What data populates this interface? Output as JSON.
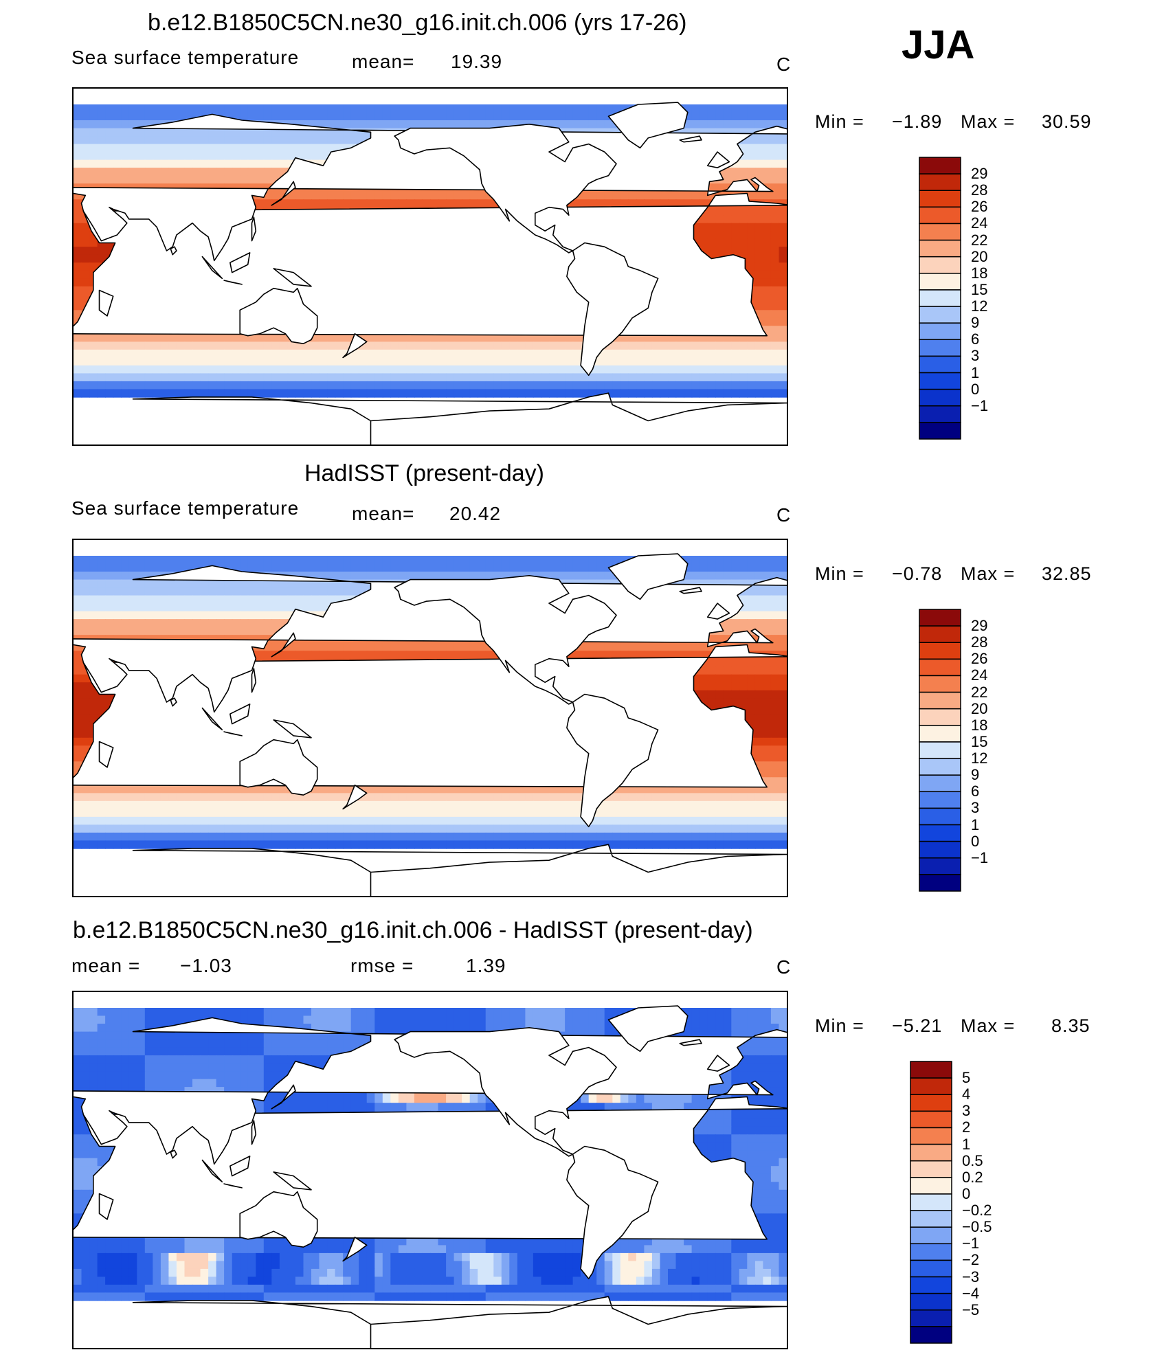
{
  "season": "JJA",
  "colors": {
    "abs": [
      "#000080",
      "#0a1fb0",
      "#0b33cc",
      "#1245dd",
      "#2a5fe6",
      "#4f80ee",
      "#7fa6f4",
      "#a9c6f8",
      "#d4e6fa",
      "#fdf2e2",
      "#fcd3bc",
      "#f9aa84",
      "#f4804f",
      "#ec5a2a",
      "#de3f10",
      "#c1280a",
      "#8b0a0a"
    ],
    "diff": [
      "#000080",
      "#0a1fb0",
      "#0b33cc",
      "#1245dd",
      "#2a5fe6",
      "#4f80ee",
      "#7fa6f4",
      "#a9c6f8",
      "#d4e6fa",
      "#fdf2e2",
      "#fcd3bc",
      "#f9aa84",
      "#f4804f",
      "#ec5a2a",
      "#de3f10",
      "#c1280a",
      "#8b0a0a"
    ]
  },
  "panels": [
    {
      "title": "b.e12.B1850C5CN.ne30_g16.init.ch.006 (yrs 17-26)",
      "variable": "Sea surface temperature",
      "stat_label": "mean=",
      "stat_value": "19.39",
      "stat2_label": "",
      "stat2_value": "",
      "units": "C",
      "min_label": "Min =",
      "min_value": "−1.89",
      "max_label": "Max =",
      "max_value": "30.59",
      "colorbar_key": "abs",
      "colorbar_labels": [
        "29",
        "28",
        "26",
        "24",
        "22",
        "20",
        "18",
        "15",
        "12",
        "9",
        "6",
        "3",
        "1",
        "0",
        "−1"
      ]
    },
    {
      "title": "HadISST (present-day)",
      "variable": "Sea surface temperature",
      "stat_label": "mean=",
      "stat_value": "20.42",
      "stat2_label": "",
      "stat2_value": "",
      "units": "C",
      "min_label": "Min =",
      "min_value": "−0.78",
      "max_label": "Max =",
      "max_value": "32.85",
      "colorbar_key": "abs",
      "colorbar_labels": [
        "29",
        "28",
        "26",
        "24",
        "22",
        "20",
        "18",
        "15",
        "12",
        "9",
        "6",
        "3",
        "1",
        "0",
        "−1"
      ]
    },
    {
      "title": "b.e12.B1850C5CN.ne30_g16.init.ch.006 - HadISST (present-day)",
      "variable": "",
      "stat_label": "mean =",
      "stat_value": "−1.03",
      "stat2_label": "rmse =",
      "stat2_value": "1.39",
      "units": "C",
      "min_label": "Min =",
      "min_value": "−5.21",
      "max_label": "Max =",
      "max_value": "8.35",
      "colorbar_key": "diff",
      "colorbar_labels": [
        "5",
        "4",
        "3",
        "2",
        "1",
        "0.5",
        "0.2",
        "0",
        "−0.2",
        "−0.5",
        "−1",
        "−2",
        "−3",
        "−4",
        "−5"
      ]
    }
  ],
  "chart_data": [
    {
      "type": "heatmap",
      "title": "b.e12.B1850C5CN.ne30_g16.init.ch.006 (yrs 17-26)",
      "field": "Sea surface temperature",
      "units": "C",
      "mean": 19.39,
      "min": -1.89,
      "max": 30.59,
      "contour_levels": [
        -1,
        0,
        1,
        3,
        6,
        9,
        12,
        15,
        18,
        20,
        22,
        24,
        26,
        28,
        29
      ]
    },
    {
      "type": "heatmap",
      "title": "HadISST (present-day)",
      "field": "Sea surface temperature",
      "units": "C",
      "mean": 20.42,
      "min": -0.78,
      "max": 32.85,
      "contour_levels": [
        -1,
        0,
        1,
        3,
        6,
        9,
        12,
        15,
        18,
        20,
        22,
        24,
        26,
        28,
        29
      ]
    },
    {
      "type": "heatmap",
      "title": "b.e12.B1850C5CN.ne30_g16.init.ch.006 - HadISST (present-day)",
      "units": "C",
      "mean": -1.03,
      "rmse": 1.39,
      "min": -5.21,
      "max": 8.35,
      "contour_levels": [
        -5,
        -4,
        -3,
        -2,
        -1,
        -0.5,
        -0.2,
        0,
        0.2,
        0.5,
        1,
        2,
        3,
        4,
        5
      ]
    }
  ]
}
